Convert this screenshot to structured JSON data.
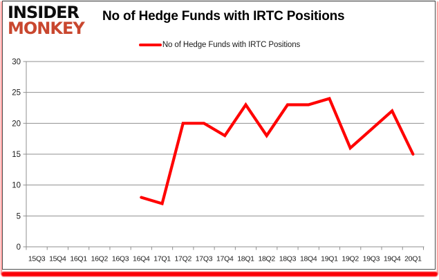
{
  "logo": {
    "line1": "INSIDER",
    "line2": "MONKEY",
    "brand_color": "#c9472f"
  },
  "header": {
    "title": "No of Hedge Funds with IRTC Positions"
  },
  "legend": {
    "label": "No of Hedge Funds with IRTC Positions",
    "color": "#ff0000"
  },
  "chart_data": {
    "type": "line",
    "title": "No of Hedge Funds with IRTC Positions",
    "categories": [
      "15Q3",
      "15Q4",
      "16Q1",
      "16Q2",
      "16Q3",
      "16Q4",
      "17Q1",
      "17Q2",
      "17Q3",
      "17Q4",
      "18Q1",
      "18Q2",
      "18Q3",
      "18Q4",
      "19Q1",
      "19Q2",
      "19Q3",
      "19Q4",
      "20Q1"
    ],
    "series": [
      {
        "name": "No of Hedge Funds with IRTC Positions",
        "color": "#ff0000",
        "values": [
          null,
          null,
          null,
          null,
          null,
          8,
          7,
          20,
          20,
          18,
          23,
          18,
          23,
          23,
          24,
          16,
          19,
          22,
          15
        ]
      }
    ],
    "ylim": [
      0,
      30
    ],
    "yticks": [
      0,
      5,
      10,
      15,
      20,
      25,
      30
    ],
    "grid": true,
    "grid_color": "#8f8f8f",
    "axis_label_color": "#1a1a1a",
    "legend_position": "top"
  }
}
